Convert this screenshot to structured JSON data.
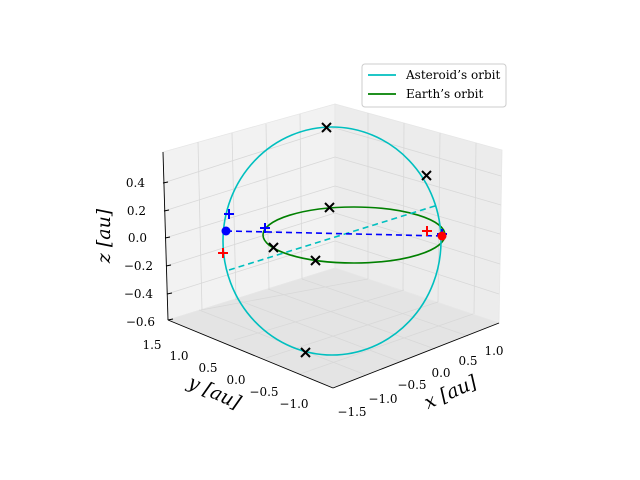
{
  "chart_data": {
    "type": "3d-line",
    "title": "",
    "axes": {
      "x": {
        "label": "x [au]",
        "ticks": [
          "−1.5",
          "−1.0",
          "−0.5",
          "0.0",
          "0.5",
          "1.0"
        ],
        "lim": [
          -1.5,
          1.25
        ]
      },
      "y": {
        "label": "y [au]",
        "ticks": [
          "−1.0",
          "−0.5",
          "0.0",
          "0.5",
          "1.0",
          "1.5"
        ],
        "lim": [
          -1.25,
          1.5
        ]
      },
      "z": {
        "label": "z [au]",
        "ticks": [
          "−0.6",
          "−0.4",
          "−0.2",
          "0.0",
          "0.2",
          "0.4"
        ],
        "lim": [
          -0.6,
          0.55
        ]
      },
      "grid": true
    },
    "legend": {
      "placement": "upper-right",
      "entries": [
        {
          "name": "Asteroid’s orbit",
          "color": "#00bfbf"
        },
        {
          "name": "Earth’s orbit",
          "color": "#008000"
        }
      ]
    },
    "series": [
      {
        "name": "Asteroid’s orbit",
        "kind": "ellipse",
        "color": "#00bfbf",
        "semi_major_axis_au": 1.25,
        "inclination_deg": 25,
        "eccentricity": 0.0
      },
      {
        "name": "Earth’s orbit",
        "kind": "circle",
        "color": "#008000",
        "radius_au": 1.0,
        "inclination_deg": 0
      }
    ],
    "markers": {
      "black_x": "positions at sample epochs",
      "blue_plus": "ascending/descending node markers",
      "red_plus": "projected points",
      "blue_dot": "node on asteroid orbit",
      "red_dot": "opposite node"
    },
    "colors": {
      "asteroid": "#00bfbf",
      "earth": "#008000",
      "black": "#000000",
      "blue": "#0000ff",
      "red": "#ff0000",
      "pane": "#f2f2f2",
      "grid": "#d9d9d9"
    }
  }
}
